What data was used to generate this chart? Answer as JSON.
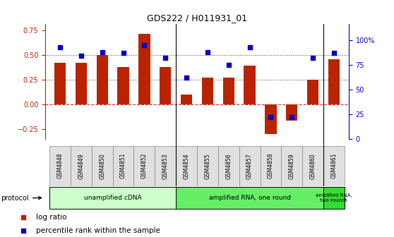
{
  "title": "GDS222 / H011931_01",
  "samples": [
    "GSM4848",
    "GSM4849",
    "GSM4850",
    "GSM4851",
    "GSM4852",
    "GSM4853",
    "GSM4854",
    "GSM4855",
    "GSM4856",
    "GSM4857",
    "GSM4858",
    "GSM4859",
    "GSM4860",
    "GSM4861"
  ],
  "log_ratio": [
    0.42,
    0.42,
    0.5,
    0.38,
    0.72,
    0.38,
    0.1,
    0.27,
    0.27,
    0.39,
    -0.3,
    -0.17,
    0.25,
    0.46
  ],
  "percentile": [
    93,
    84,
    88,
    87,
    95,
    82,
    62,
    88,
    75,
    93,
    22,
    22,
    82,
    87
  ],
  "ylim_left": [
    -0.35,
    0.82
  ],
  "ylim_right": [
    0,
    116.6
  ],
  "yticks_left": [
    -0.25,
    0,
    0.25,
    0.5,
    0.75
  ],
  "yticks_right": [
    0,
    25,
    50,
    75,
    100
  ],
  "bar_color": "#BB2200",
  "dot_color": "#0000CC",
  "hline_color": "#CC3333",
  "dotted_line_color": "#444444",
  "bg_color": "#FFFFFF",
  "proto_info": [
    [
      0,
      5,
      "#CCFFCC",
      "unamplified cDNA"
    ],
    [
      6,
      12,
      "#66EE66",
      "amplified RNA, one round"
    ],
    [
      13,
      13,
      "#33DD33",
      "amplified RNA,\ntwo rounds"
    ]
  ],
  "protocol_label": "protocol",
  "legend_items": [
    {
      "color": "#BB2200",
      "label": "log ratio"
    },
    {
      "color": "#0000CC",
      "label": "percentile rank within the sample"
    }
  ],
  "xlim": [
    -0.7,
    13.7
  ]
}
